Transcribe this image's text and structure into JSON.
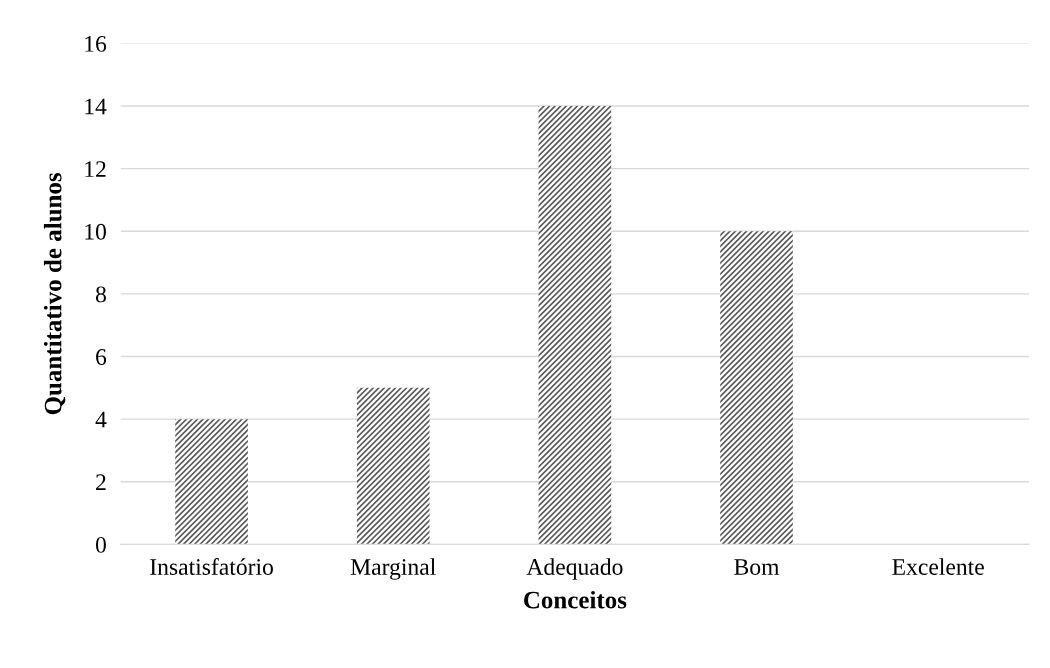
{
  "chart_data": {
    "type": "bar",
    "xlabel": "Conceitos",
    "ylabel": "Quantitativo de alunos",
    "categories": [
      "Insatisfatório",
      "Marginal",
      "Adequado",
      "Bom",
      "Excelente"
    ],
    "values": [
      4,
      5,
      14,
      10,
      0
    ],
    "color": "#595959",
    "ylim": [
      0,
      16
    ],
    "yticks": [
      0,
      2,
      4,
      6,
      8,
      10,
      12,
      14,
      16
    ],
    "grid": "y",
    "legend": false
  }
}
